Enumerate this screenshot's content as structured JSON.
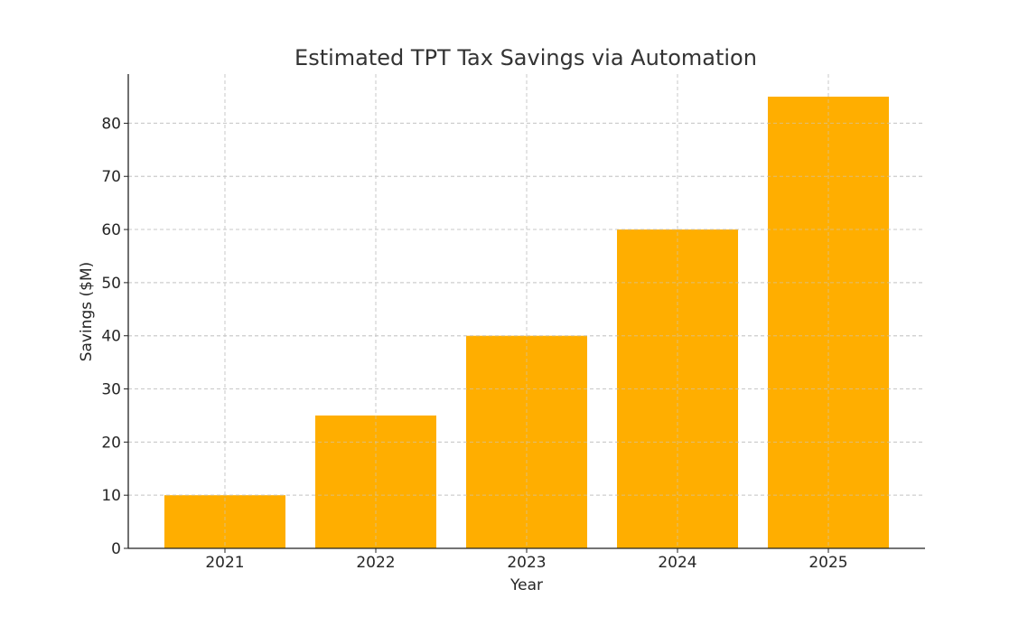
{
  "chart_data": {
    "type": "bar",
    "title": "Estimated TPT Tax Savings via Automation",
    "xlabel": "Year",
    "ylabel": "Savings ($M)",
    "categories": [
      "2021",
      "2022",
      "2023",
      "2024",
      "2025"
    ],
    "values": [
      10,
      25,
      40,
      60,
      85
    ],
    "ylim": [
      0,
      89.25
    ],
    "yticks": [
      0,
      10,
      20,
      30,
      40,
      50,
      60,
      70,
      80
    ],
    "grid": true,
    "colors": {
      "bar": "#FFAE00",
      "grid": "#c8c8c8",
      "axis": "#222222"
    }
  }
}
